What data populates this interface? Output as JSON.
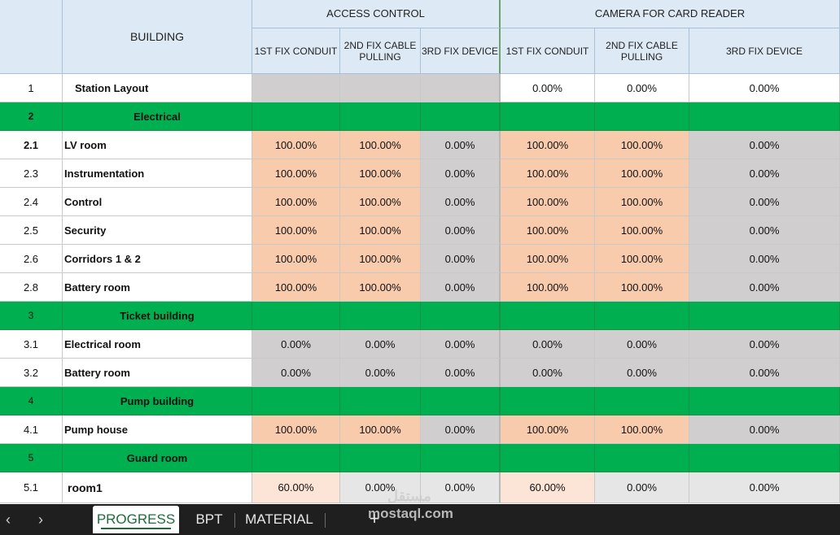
{
  "headers": {
    "building": "BUILDING",
    "access_control": "ACCESS CONTROL",
    "camera": "CAMERA FOR CARD READER",
    "sub": [
      "1ST FIX CONDUIT",
      "2ND FIX CABLE PULLING",
      "3RD FIX DEVICE",
      "1ST FIX CONDUIT",
      "2ND FIX CABLE PULLING",
      "3RD FIX DEVICE"
    ]
  },
  "rows": [
    {
      "num": "1",
      "name": "Station Layout",
      "type": "item",
      "indent": true,
      "values": [
        "",
        "",
        "",
        "0.00%",
        "0.00%",
        "0.00%"
      ],
      "bg": [
        "gray",
        "gray",
        "gray",
        "white",
        "white",
        "white"
      ]
    },
    {
      "num": "2",
      "name": "Electrical",
      "type": "section",
      "values": [
        "",
        "",
        "",
        "",
        "",
        ""
      ]
    },
    {
      "num": "2.1",
      "name": "LV room",
      "type": "item",
      "bold_num": true,
      "values": [
        "100.00%",
        "100.00%",
        "0.00%",
        "100.00%",
        "100.00%",
        "0.00%"
      ],
      "bg": [
        "salmon",
        "salmon",
        "gray",
        "salmon",
        "salmon",
        "gray"
      ]
    },
    {
      "num": "2.3",
      "name": "Instrumentation",
      "type": "item",
      "values": [
        "100.00%",
        "100.00%",
        "0.00%",
        "100.00%",
        "100.00%",
        "0.00%"
      ],
      "bg": [
        "salmon",
        "salmon",
        "gray",
        "salmon",
        "salmon",
        "gray"
      ]
    },
    {
      "num": "2.4",
      "name": "Control",
      "type": "item",
      "values": [
        "100.00%",
        "100.00%",
        "0.00%",
        "100.00%",
        "100.00%",
        "0.00%"
      ],
      "bg": [
        "salmon",
        "salmon",
        "gray",
        "salmon",
        "salmon",
        "gray"
      ]
    },
    {
      "num": "2.5",
      "name": "Security",
      "type": "item",
      "values": [
        "100.00%",
        "100.00%",
        "0.00%",
        "100.00%",
        "100.00%",
        "0.00%"
      ],
      "bg": [
        "salmon",
        "salmon",
        "gray",
        "salmon",
        "salmon",
        "gray"
      ]
    },
    {
      "num": "2.6",
      "name": "Corridors 1 & 2",
      "type": "item",
      "values": [
        "100.00%",
        "100.00%",
        "0.00%",
        "100.00%",
        "100.00%",
        "0.00%"
      ],
      "bg": [
        "salmon",
        "salmon",
        "gray",
        "salmon",
        "salmon",
        "gray"
      ]
    },
    {
      "num": "2.8",
      "name": "Battery room",
      "type": "item",
      "values": [
        "100.00%",
        "100.00%",
        "0.00%",
        "100.00%",
        "100.00%",
        "0.00%"
      ],
      "bg": [
        "salmon",
        "salmon",
        "gray",
        "salmon",
        "salmon",
        "gray"
      ]
    },
    {
      "num": "3",
      "name": "Ticket building",
      "type": "section",
      "light_num": true,
      "values": [
        "",
        "",
        "",
        "",
        "",
        ""
      ]
    },
    {
      "num": "3.1",
      "name": "Electrical room",
      "type": "item",
      "values": [
        "0.00%",
        "0.00%",
        "0.00%",
        "0.00%",
        "0.00%",
        "0.00%"
      ],
      "bg": [
        "gray",
        "gray",
        "gray",
        "gray",
        "gray",
        "gray"
      ]
    },
    {
      "num": "3.2",
      "name": "Battery room",
      "type": "item",
      "values": [
        "0.00%",
        "0.00%",
        "0.00%",
        "0.00%",
        "0.00%",
        "0.00%"
      ],
      "bg": [
        "gray",
        "gray",
        "gray",
        "gray",
        "gray",
        "gray"
      ]
    },
    {
      "num": "4",
      "name": "Pump building",
      "type": "section",
      "light_num": true,
      "values": [
        "",
        "",
        "",
        "",
        "",
        ""
      ]
    },
    {
      "num": "4.1",
      "name": "Pump house",
      "type": "item",
      "values": [
        "100.00%",
        "100.00%",
        "0.00%",
        "100.00%",
        "100.00%",
        "0.00%"
      ],
      "bg": [
        "salmon",
        "salmon",
        "gray",
        "salmon",
        "salmon",
        "gray"
      ]
    },
    {
      "num": "5",
      "name": "Guard room",
      "type": "section",
      "light_num": true,
      "values": [
        "",
        "",
        "",
        "",
        "",
        ""
      ]
    },
    {
      "num": "5.1",
      "name": "room1",
      "type": "item",
      "room1": true,
      "values": [
        "60.00%",
        "0.00%",
        "0.00%",
        "60.00%",
        "0.00%",
        "0.00%"
      ],
      "bg": [
        "salmon-light",
        "gray-light",
        "gray-light",
        "salmon-light",
        "gray-light",
        "gray-light"
      ]
    }
  ],
  "tabs": [
    "PROGRESS",
    "BPT",
    "MATERIAL"
  ],
  "active_tab": "PROGRESS",
  "add_tab": "+",
  "nav": {
    "prev": "‹",
    "next": "›"
  },
  "watermark": {
    "arabic": "مستقل",
    "latin": "mostaql.com"
  },
  "colors": {
    "section_green": "#00b050",
    "done_salmon": "#f8cbad",
    "pending_gray": "#d0cece",
    "header_blue": "#dde9f5"
  }
}
